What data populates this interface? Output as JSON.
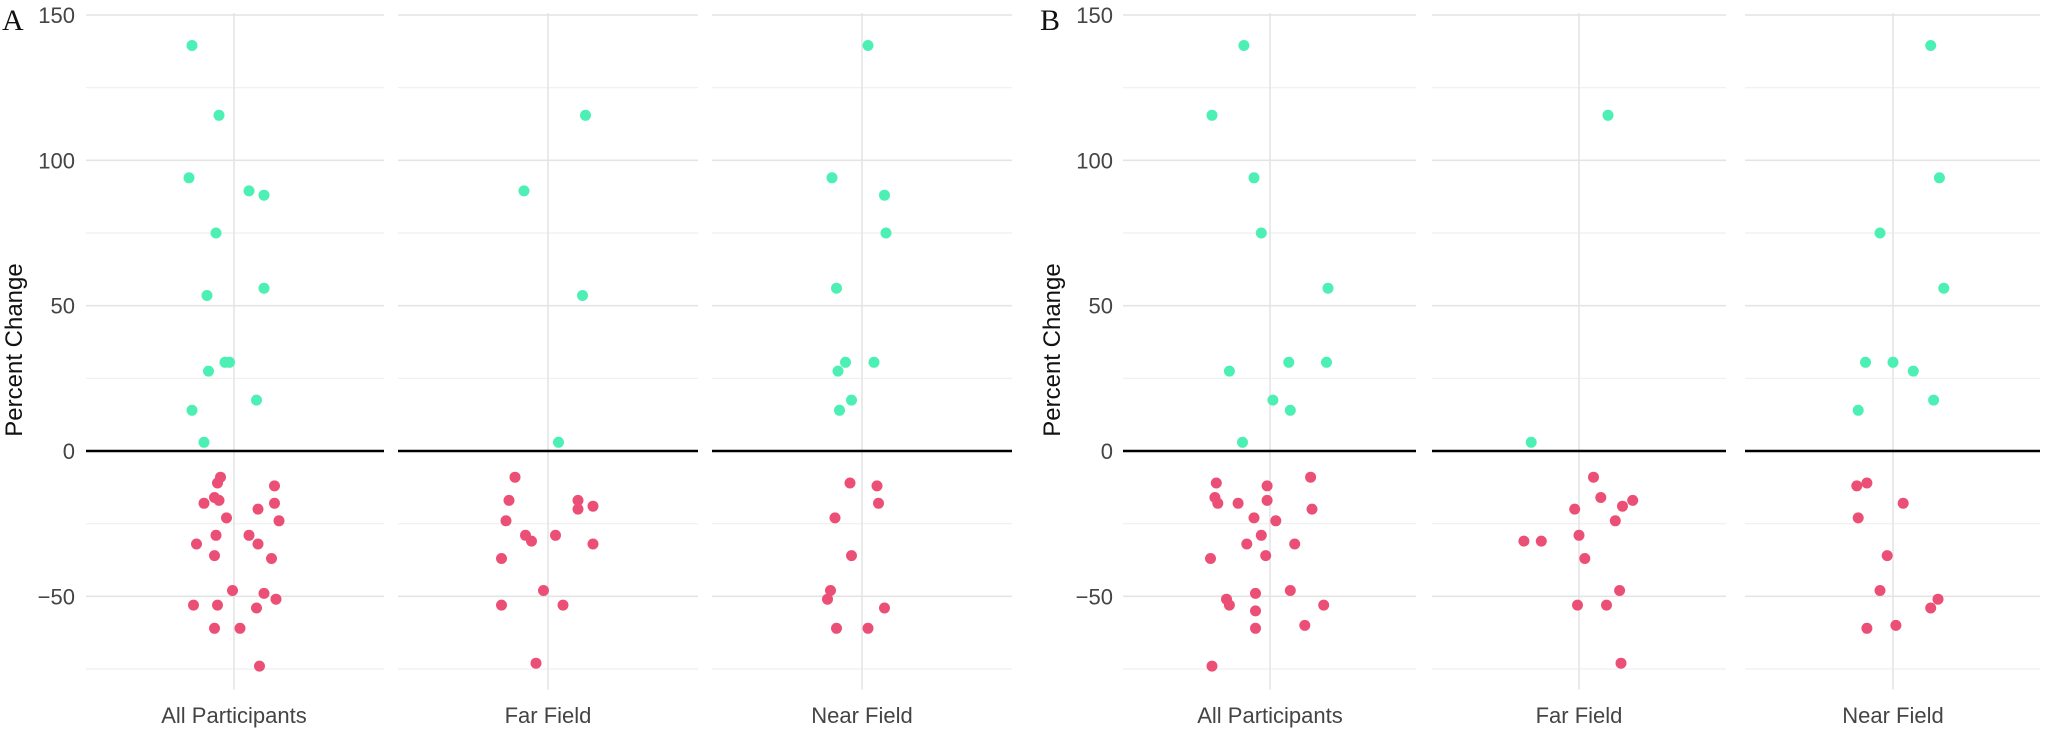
{
  "chart_data": [
    {
      "panel": "A",
      "type": "scatter",
      "ylabel": "Percent Change",
      "xlabel": "",
      "ylim": [
        -80,
        150
      ],
      "yticks": [
        -50,
        0,
        50,
        100,
        150
      ],
      "ytick_labels": [
        "−50",
        "0",
        "50",
        "100",
        "150"
      ],
      "reference_line": 0,
      "categories": [
        "All Participants",
        "Far Field",
        "Near Field"
      ],
      "colors": {
        "positive": "#4cf0b4",
        "negative": "#ec4f76"
      },
      "series": [
        {
          "name": "All Participants",
          "points": [
            {
              "x": -0.28,
              "y": 139.5
            },
            {
              "x": -0.1,
              "y": 115.5
            },
            {
              "x": -0.3,
              "y": 94
            },
            {
              "x": 0.1,
              "y": 89.5
            },
            {
              "x": 0.2,
              "y": 88
            },
            {
              "x": -0.12,
              "y": 75
            },
            {
              "x": 0.2,
              "y": 56
            },
            {
              "x": -0.18,
              "y": 53.5
            },
            {
              "x": -0.06,
              "y": 30.5
            },
            {
              "x": -0.03,
              "y": 30.5
            },
            {
              "x": -0.17,
              "y": 27.5
            },
            {
              "x": 0.15,
              "y": 17.5
            },
            {
              "x": -0.28,
              "y": 14
            },
            {
              "x": -0.2,
              "y": 3
            },
            {
              "x": -0.09,
              "y": -9
            },
            {
              "x": 0.27,
              "y": -12
            },
            {
              "x": -0.11,
              "y": -11
            },
            {
              "x": -0.13,
              "y": -16
            },
            {
              "x": -0.1,
              "y": -17
            },
            {
              "x": -0.2,
              "y": -18
            },
            {
              "x": 0.27,
              "y": -18
            },
            {
              "x": 0.16,
              "y": -20
            },
            {
              "x": 0.3,
              "y": -24
            },
            {
              "x": -0.05,
              "y": -23
            },
            {
              "x": 0.1,
              "y": -29
            },
            {
              "x": -0.12,
              "y": -29
            },
            {
              "x": 0.16,
              "y": -32
            },
            {
              "x": -0.25,
              "y": -32
            },
            {
              "x": -0.13,
              "y": -36
            },
            {
              "x": 0.25,
              "y": -37
            },
            {
              "x": -0.01,
              "y": -48
            },
            {
              "x": 0.2,
              "y": -49
            },
            {
              "x": 0.28,
              "y": -51
            },
            {
              "x": -0.27,
              "y": -53
            },
            {
              "x": -0.11,
              "y": -53
            },
            {
              "x": 0.15,
              "y": -54
            },
            {
              "x": -0.13,
              "y": -61
            },
            {
              "x": 0.04,
              "y": -61
            },
            {
              "x": 0.17,
              "y": -74
            }
          ]
        },
        {
          "name": "Far Field",
          "points": [
            {
              "x": 0.25,
              "y": 115.5
            },
            {
              "x": -0.16,
              "y": 89.5
            },
            {
              "x": 0.23,
              "y": 53.5
            },
            {
              "x": 0.07,
              "y": 3
            },
            {
              "x": -0.22,
              "y": -9
            },
            {
              "x": 0.2,
              "y": -17
            },
            {
              "x": -0.26,
              "y": -17
            },
            {
              "x": 0.3,
              "y": -19
            },
            {
              "x": 0.2,
              "y": -20
            },
            {
              "x": -0.28,
              "y": -24
            },
            {
              "x": -0.15,
              "y": -29
            },
            {
              "x": 0.05,
              "y": -29
            },
            {
              "x": -0.11,
              "y": -31
            },
            {
              "x": 0.3,
              "y": -32
            },
            {
              "x": -0.31,
              "y": -37
            },
            {
              "x": -0.03,
              "y": -48
            },
            {
              "x": 0.1,
              "y": -53
            },
            {
              "x": -0.31,
              "y": -53
            },
            {
              "x": -0.08,
              "y": -73
            }
          ]
        },
        {
          "name": "Near Field",
          "points": [
            {
              "x": 0.04,
              "y": 139.5
            },
            {
              "x": -0.2,
              "y": 94
            },
            {
              "x": 0.15,
              "y": 88
            },
            {
              "x": 0.16,
              "y": 75
            },
            {
              "x": -0.17,
              "y": 56
            },
            {
              "x": -0.11,
              "y": 30.5
            },
            {
              "x": 0.08,
              "y": 30.5
            },
            {
              "x": -0.16,
              "y": 27.5
            },
            {
              "x": -0.07,
              "y": 17.5
            },
            {
              "x": -0.15,
              "y": 14
            },
            {
              "x": -0.08,
              "y": -11
            },
            {
              "x": 0.1,
              "y": -12
            },
            {
              "x": 0.11,
              "y": -18
            },
            {
              "x": -0.18,
              "y": -23
            },
            {
              "x": -0.07,
              "y": -36
            },
            {
              "x": -0.21,
              "y": -48
            },
            {
              "x": -0.23,
              "y": -51
            },
            {
              "x": 0.15,
              "y": -54
            },
            {
              "x": -0.17,
              "y": -61
            },
            {
              "x": 0.04,
              "y": -61
            }
          ]
        }
      ]
    },
    {
      "panel": "B",
      "type": "scatter",
      "ylabel": "Percent Change",
      "xlabel": "",
      "ylim": [
        -80,
        150
      ],
      "yticks": [
        -50,
        0,
        50,
        100,
        150
      ],
      "ytick_labels": [
        "−50",
        "0",
        "50",
        "100",
        "150"
      ],
      "reference_line": 0,
      "categories": [
        "All Participants",
        "Far Field",
        "Near Field"
      ],
      "colors": {
        "positive": "#4cf0b4",
        "negative": "#ec4f76"
      },
      "series": [
        {
          "name": "All Participants",
          "points": [
            {
              "x": -0.18,
              "y": 139.5
            },
            {
              "x": -0.4,
              "y": 115.5
            },
            {
              "x": -0.11,
              "y": 94
            },
            {
              "x": -0.06,
              "y": 75
            },
            {
              "x": 0.4,
              "y": 56
            },
            {
              "x": 0.13,
              "y": 30.5
            },
            {
              "x": 0.39,
              "y": 30.5
            },
            {
              "x": -0.28,
              "y": 27.5
            },
            {
              "x": 0.02,
              "y": 17.5
            },
            {
              "x": 0.14,
              "y": 14
            },
            {
              "x": -0.19,
              "y": 3
            },
            {
              "x": 0.28,
              "y": -9
            },
            {
              "x": -0.37,
              "y": -11
            },
            {
              "x": -0.02,
              "y": -12
            },
            {
              "x": -0.38,
              "y": -16
            },
            {
              "x": -0.02,
              "y": -17
            },
            {
              "x": -0.36,
              "y": -18
            },
            {
              "x": -0.22,
              "y": -18
            },
            {
              "x": 0.29,
              "y": -20
            },
            {
              "x": -0.11,
              "y": -23
            },
            {
              "x": 0.04,
              "y": -24
            },
            {
              "x": -0.06,
              "y": -29
            },
            {
              "x": -0.16,
              "y": -32
            },
            {
              "x": 0.17,
              "y": -32
            },
            {
              "x": -0.03,
              "y": -36
            },
            {
              "x": -0.41,
              "y": -37
            },
            {
              "x": 0.14,
              "y": -48
            },
            {
              "x": -0.1,
              "y": -49
            },
            {
              "x": -0.3,
              "y": -51
            },
            {
              "x": -0.28,
              "y": -53
            },
            {
              "x": 0.37,
              "y": -53
            },
            {
              "x": -0.1,
              "y": -55
            },
            {
              "x": -0.1,
              "y": -61
            },
            {
              "x": 0.24,
              "y": -60
            },
            {
              "x": -0.4,
              "y": -74
            }
          ]
        },
        {
          "name": "Far Field",
          "points": [
            {
              "x": 0.2,
              "y": 115.5
            },
            {
              "x": -0.33,
              "y": 3
            },
            {
              "x": 0.1,
              "y": -9
            },
            {
              "x": 0.15,
              "y": -16
            },
            {
              "x": 0.37,
              "y": -17
            },
            {
              "x": 0.3,
              "y": -19
            },
            {
              "x": -0.03,
              "y": -20
            },
            {
              "x": 0.25,
              "y": -24
            },
            {
              "x": 0.0,
              "y": -29
            },
            {
              "x": -0.38,
              "y": -31
            },
            {
              "x": -0.26,
              "y": -31
            },
            {
              "x": 0.04,
              "y": -37
            },
            {
              "x": 0.28,
              "y": -48
            },
            {
              "x": 0.19,
              "y": -53
            },
            {
              "x": -0.01,
              "y": -53
            },
            {
              "x": 0.29,
              "y": -73
            }
          ]
        },
        {
          "name": "Near Field",
          "points": [
            {
              "x": 0.26,
              "y": 139.5
            },
            {
              "x": 0.32,
              "y": 94
            },
            {
              "x": -0.09,
              "y": 75
            },
            {
              "x": 0.35,
              "y": 56
            },
            {
              "x": -0.19,
              "y": 30.5
            },
            {
              "x": 0.0,
              "y": 30.5
            },
            {
              "x": 0.14,
              "y": 27.5
            },
            {
              "x": 0.28,
              "y": 17.5
            },
            {
              "x": -0.24,
              "y": 14
            },
            {
              "x": -0.25,
              "y": -12
            },
            {
              "x": -0.18,
              "y": -11
            },
            {
              "x": 0.07,
              "y": -18
            },
            {
              "x": -0.24,
              "y": -23
            },
            {
              "x": -0.04,
              "y": -36
            },
            {
              "x": -0.09,
              "y": -48
            },
            {
              "x": 0.31,
              "y": -51
            },
            {
              "x": 0.26,
              "y": -54
            },
            {
              "x": -0.18,
              "y": -61
            },
            {
              "x": 0.02,
              "y": -60
            }
          ]
        }
      ]
    }
  ]
}
